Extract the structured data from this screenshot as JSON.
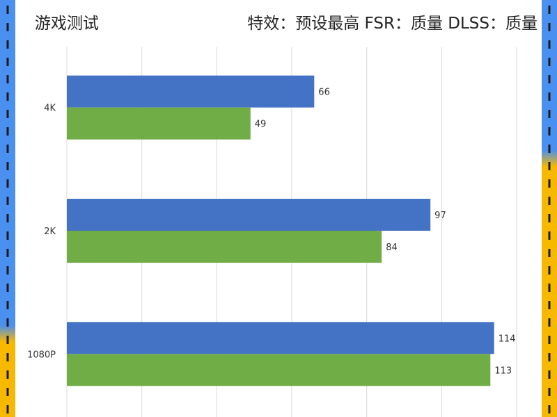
{
  "header": {
    "title": "游戏测试",
    "settings": "特效：预设最高  FSR：质量 DLSS：质量"
  },
  "colors": {
    "border_blue": "#4a90f0",
    "border_yellow": "#f7b800",
    "border_dash": "#1a1a1a",
    "series_blue": "#4472c4",
    "series_green": "#70ad47",
    "grid": "#d9d9d9"
  },
  "chart_data": {
    "type": "bar",
    "orientation": "horizontal",
    "title": "",
    "xlabel": "",
    "ylabel": "",
    "categories": [
      "4K",
      "2K",
      "1080P"
    ],
    "series": [
      {
        "values": [
          66,
          97,
          114
        ],
        "color": "#4472c4"
      },
      {
        "values": [
          49,
          84,
          113
        ],
        "color": "#70ad47"
      }
    ],
    "xlim": [
      0,
      120
    ],
    "grid": true,
    "data_labels": true
  }
}
